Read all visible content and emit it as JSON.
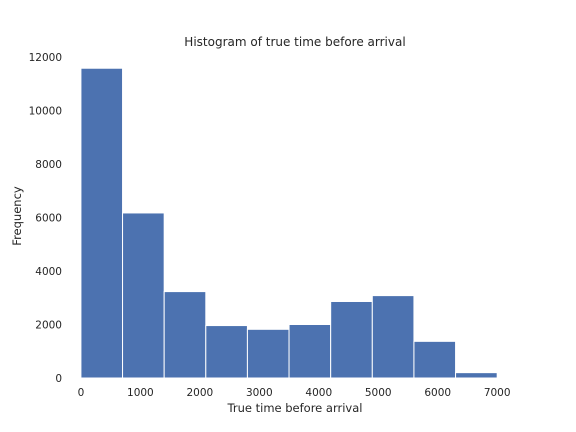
{
  "chart_data": {
    "type": "bar",
    "title": "Histogram of true time before arrival",
    "xlabel": "True time before arrival",
    "ylabel": "Frequency",
    "xlim": [
      -150,
      7350
    ],
    "ylim": [
      0,
      12000
    ],
    "x_ticks": [
      0,
      1000,
      2000,
      3000,
      4000,
      5000,
      6000,
      7000
    ],
    "y_ticks": [
      0,
      2000,
      4000,
      6000,
      8000,
      10000,
      12000
    ],
    "bin_edges": [
      0,
      700,
      1400,
      2100,
      2800,
      3500,
      4200,
      4900,
      5600,
      6300,
      7000
    ],
    "values": [
      11580,
      6170,
      3230,
      1960,
      1820,
      2000,
      2860,
      3080,
      1370,
      200
    ],
    "bar_color": "#4c72b0",
    "grid": false,
    "legend": "none"
  }
}
